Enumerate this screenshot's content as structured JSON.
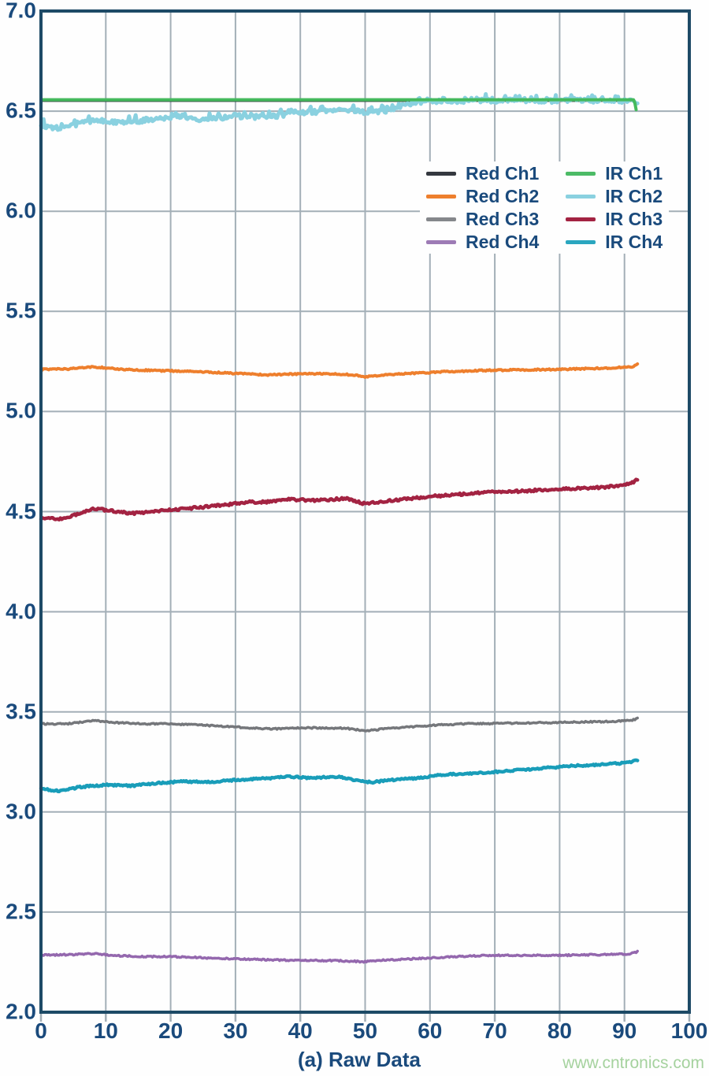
{
  "figure": {
    "watermark": "www.cntronics.com",
    "watermark_color": "#a5d29e",
    "text_color": "#1a4a7c",
    "border_color": "#1d4a66",
    "grid_color": "#a3afb7",
    "background": "#fefefe"
  },
  "chart_data": {
    "type": "line",
    "title": "",
    "xlabel": "(a) Raw Data",
    "ylabel": "",
    "xlim": [
      0,
      100
    ],
    "ylim": [
      2.0,
      7.0
    ],
    "grid": true,
    "x_ticks": [
      "0",
      "10",
      "20",
      "30",
      "40",
      "50",
      "60",
      "70",
      "80",
      "90",
      "100"
    ],
    "y_ticks": [
      "7.0",
      "6.5",
      "6.0",
      "5.5",
      "5.0",
      "4.5",
      "4.0",
      "3.5",
      "3.0",
      "2.5",
      "2.0"
    ],
    "legend": {
      "position": "upper-right",
      "columns": [
        [
          {
            "label": "Red Ch1",
            "color": "#34383f"
          },
          {
            "label": "Red Ch2",
            "color": "#ee7f2d"
          },
          {
            "label": "Red Ch3",
            "color": "#85878b"
          },
          {
            "label": "Red Ch4",
            "color": "#9d7bb5"
          }
        ],
        [
          {
            "label": "IR Ch1",
            "color": "#4cbb66"
          },
          {
            "label": "IR Ch2",
            "color": "#8ad1e0"
          },
          {
            "label": "IR Ch3",
            "color": "#a32342"
          },
          {
            "label": "IR Ch4",
            "color": "#2aa6bf"
          }
        ]
      ]
    },
    "series": [
      {
        "id": "red-ch1",
        "name": "Red Ch1",
        "color": "#34383f",
        "width": 3,
        "noise": 0,
        "spike": false,
        "points": [
          [
            0,
            6.552
          ],
          [
            91.5,
            6.552
          ]
        ]
      },
      {
        "id": "ir-ch2",
        "name": "IR Ch2",
        "color": "#8ad1e0",
        "width": 5,
        "noise": 0.011,
        "spike": true,
        "points": [
          [
            0,
            6.43
          ],
          [
            2,
            6.415
          ],
          [
            4,
            6.42
          ],
          [
            6,
            6.44
          ],
          [
            9,
            6.455
          ],
          [
            12,
            6.445
          ],
          [
            15,
            6.45
          ],
          [
            18,
            6.465
          ],
          [
            21,
            6.47
          ],
          [
            24,
            6.46
          ],
          [
            27,
            6.465
          ],
          [
            30,
            6.475
          ],
          [
            33,
            6.47
          ],
          [
            36,
            6.475
          ],
          [
            39,
            6.49
          ],
          [
            42,
            6.495
          ],
          [
            45,
            6.5
          ],
          [
            48,
            6.505
          ],
          [
            51,
            6.49
          ],
          [
            53,
            6.5
          ],
          [
            55,
            6.52
          ],
          [
            57,
            6.535
          ],
          [
            59,
            6.545
          ],
          [
            62,
            6.55
          ],
          [
            66,
            6.552
          ],
          [
            70,
            6.552
          ],
          [
            75,
            6.552
          ],
          [
            80,
            6.552
          ],
          [
            85,
            6.552
          ],
          [
            89,
            6.552
          ],
          [
            92,
            6.548
          ]
        ]
      },
      {
        "id": "ir-ch1",
        "name": "IR Ch1",
        "color": "#44b95c",
        "width": 4,
        "noise": 0,
        "spike": false,
        "points": [
          [
            0,
            6.557
          ],
          [
            91.5,
            6.557
          ],
          [
            91.8,
            6.507
          ]
        ]
      },
      {
        "id": "red-ch2",
        "name": "Red Ch2",
        "color": "#ee7f2d",
        "width": 4,
        "noise": 0.0035,
        "spike": false,
        "points": [
          [
            0,
            5.21
          ],
          [
            4,
            5.212
          ],
          [
            8,
            5.223
          ],
          [
            12,
            5.212
          ],
          [
            16,
            5.206
          ],
          [
            20,
            5.203
          ],
          [
            25,
            5.198
          ],
          [
            30,
            5.19
          ],
          [
            35,
            5.183
          ],
          [
            40,
            5.188
          ],
          [
            45,
            5.188
          ],
          [
            48,
            5.183
          ],
          [
            50,
            5.174
          ],
          [
            53,
            5.182
          ],
          [
            57,
            5.19
          ],
          [
            62,
            5.198
          ],
          [
            68,
            5.205
          ],
          [
            74,
            5.208
          ],
          [
            80,
            5.21
          ],
          [
            85,
            5.215
          ],
          [
            88,
            5.218
          ],
          [
            91,
            5.222
          ],
          [
            92,
            5.235
          ]
        ]
      },
      {
        "id": "ir-ch3",
        "name": "IR Ch3",
        "color": "#a32342",
        "width": 4.5,
        "noise": 0.006,
        "spike": false,
        "points": [
          [
            0,
            4.468
          ],
          [
            3,
            4.463
          ],
          [
            6,
            4.49
          ],
          [
            8,
            4.516
          ],
          [
            11,
            4.503
          ],
          [
            14,
            4.49
          ],
          [
            17,
            4.5
          ],
          [
            20,
            4.508
          ],
          [
            24,
            4.52
          ],
          [
            28,
            4.532
          ],
          [
            32,
            4.547
          ],
          [
            36,
            4.55
          ],
          [
            38,
            4.562
          ],
          [
            41,
            4.557
          ],
          [
            44,
            4.557
          ],
          [
            47,
            4.567
          ],
          [
            50,
            4.538
          ],
          [
            53,
            4.552
          ],
          [
            56,
            4.562
          ],
          [
            60,
            4.576
          ],
          [
            63,
            4.582
          ],
          [
            66,
            4.59
          ],
          [
            70,
            4.6
          ],
          [
            74,
            4.602
          ],
          [
            78,
            4.61
          ],
          [
            82,
            4.615
          ],
          [
            86,
            4.62
          ],
          [
            89,
            4.63
          ],
          [
            91,
            4.64
          ],
          [
            92,
            4.66
          ]
        ]
      },
      {
        "id": "red-ch3",
        "name": "Red Ch3",
        "color": "#75777b",
        "width": 3.5,
        "noise": 0.0035,
        "spike": false,
        "points": [
          [
            0,
            3.44
          ],
          [
            4,
            3.44
          ],
          [
            8,
            3.456
          ],
          [
            12,
            3.446
          ],
          [
            16,
            3.44
          ],
          [
            20,
            3.44
          ],
          [
            24,
            3.435
          ],
          [
            28,
            3.428
          ],
          [
            32,
            3.42
          ],
          [
            36,
            3.415
          ],
          [
            40,
            3.42
          ],
          [
            44,
            3.42
          ],
          [
            47,
            3.418
          ],
          [
            50,
            3.405
          ],
          [
            53,
            3.415
          ],
          [
            57,
            3.425
          ],
          [
            61,
            3.434
          ],
          [
            65,
            3.44
          ],
          [
            70,
            3.442
          ],
          [
            75,
            3.445
          ],
          [
            80,
            3.447
          ],
          [
            85,
            3.45
          ],
          [
            88,
            3.452
          ],
          [
            91,
            3.456
          ],
          [
            92,
            3.466
          ]
        ]
      },
      {
        "id": "ir-ch4",
        "name": "IR Ch4",
        "color": "#199db9",
        "width": 4.5,
        "noise": 0.0045,
        "spike": false,
        "points": [
          [
            0,
            3.115
          ],
          [
            3,
            3.105
          ],
          [
            6,
            3.125
          ],
          [
            10,
            3.136
          ],
          [
            14,
            3.13
          ],
          [
            18,
            3.145
          ],
          [
            22,
            3.152
          ],
          [
            26,
            3.15
          ],
          [
            30,
            3.16
          ],
          [
            34,
            3.166
          ],
          [
            38,
            3.176
          ],
          [
            42,
            3.17
          ],
          [
            46,
            3.176
          ],
          [
            49,
            3.156
          ],
          [
            51,
            3.148
          ],
          [
            54,
            3.16
          ],
          [
            58,
            3.17
          ],
          [
            62,
            3.186
          ],
          [
            66,
            3.192
          ],
          [
            70,
            3.2
          ],
          [
            74,
            3.21
          ],
          [
            78,
            3.22
          ],
          [
            82,
            3.23
          ],
          [
            86,
            3.236
          ],
          [
            89,
            3.242
          ],
          [
            91,
            3.25
          ],
          [
            92,
            3.26
          ]
        ]
      },
      {
        "id": "red-ch4",
        "name": "Red Ch4",
        "color": "#9468ae",
        "width": 3.5,
        "noise": 0.0035,
        "spike": false,
        "points": [
          [
            0,
            2.285
          ],
          [
            5,
            2.288
          ],
          [
            8,
            2.292
          ],
          [
            12,
            2.282
          ],
          [
            16,
            2.278
          ],
          [
            20,
            2.278
          ],
          [
            25,
            2.272
          ],
          [
            30,
            2.266
          ],
          [
            35,
            2.262
          ],
          [
            40,
            2.258
          ],
          [
            45,
            2.258
          ],
          [
            50,
            2.252
          ],
          [
            53,
            2.26
          ],
          [
            57,
            2.266
          ],
          [
            62,
            2.274
          ],
          [
            66,
            2.28
          ],
          [
            70,
            2.284
          ],
          [
            75,
            2.284
          ],
          [
            80,
            2.284
          ],
          [
            85,
            2.287
          ],
          [
            88,
            2.288
          ],
          [
            91,
            2.292
          ],
          [
            92,
            2.302
          ]
        ]
      }
    ]
  }
}
